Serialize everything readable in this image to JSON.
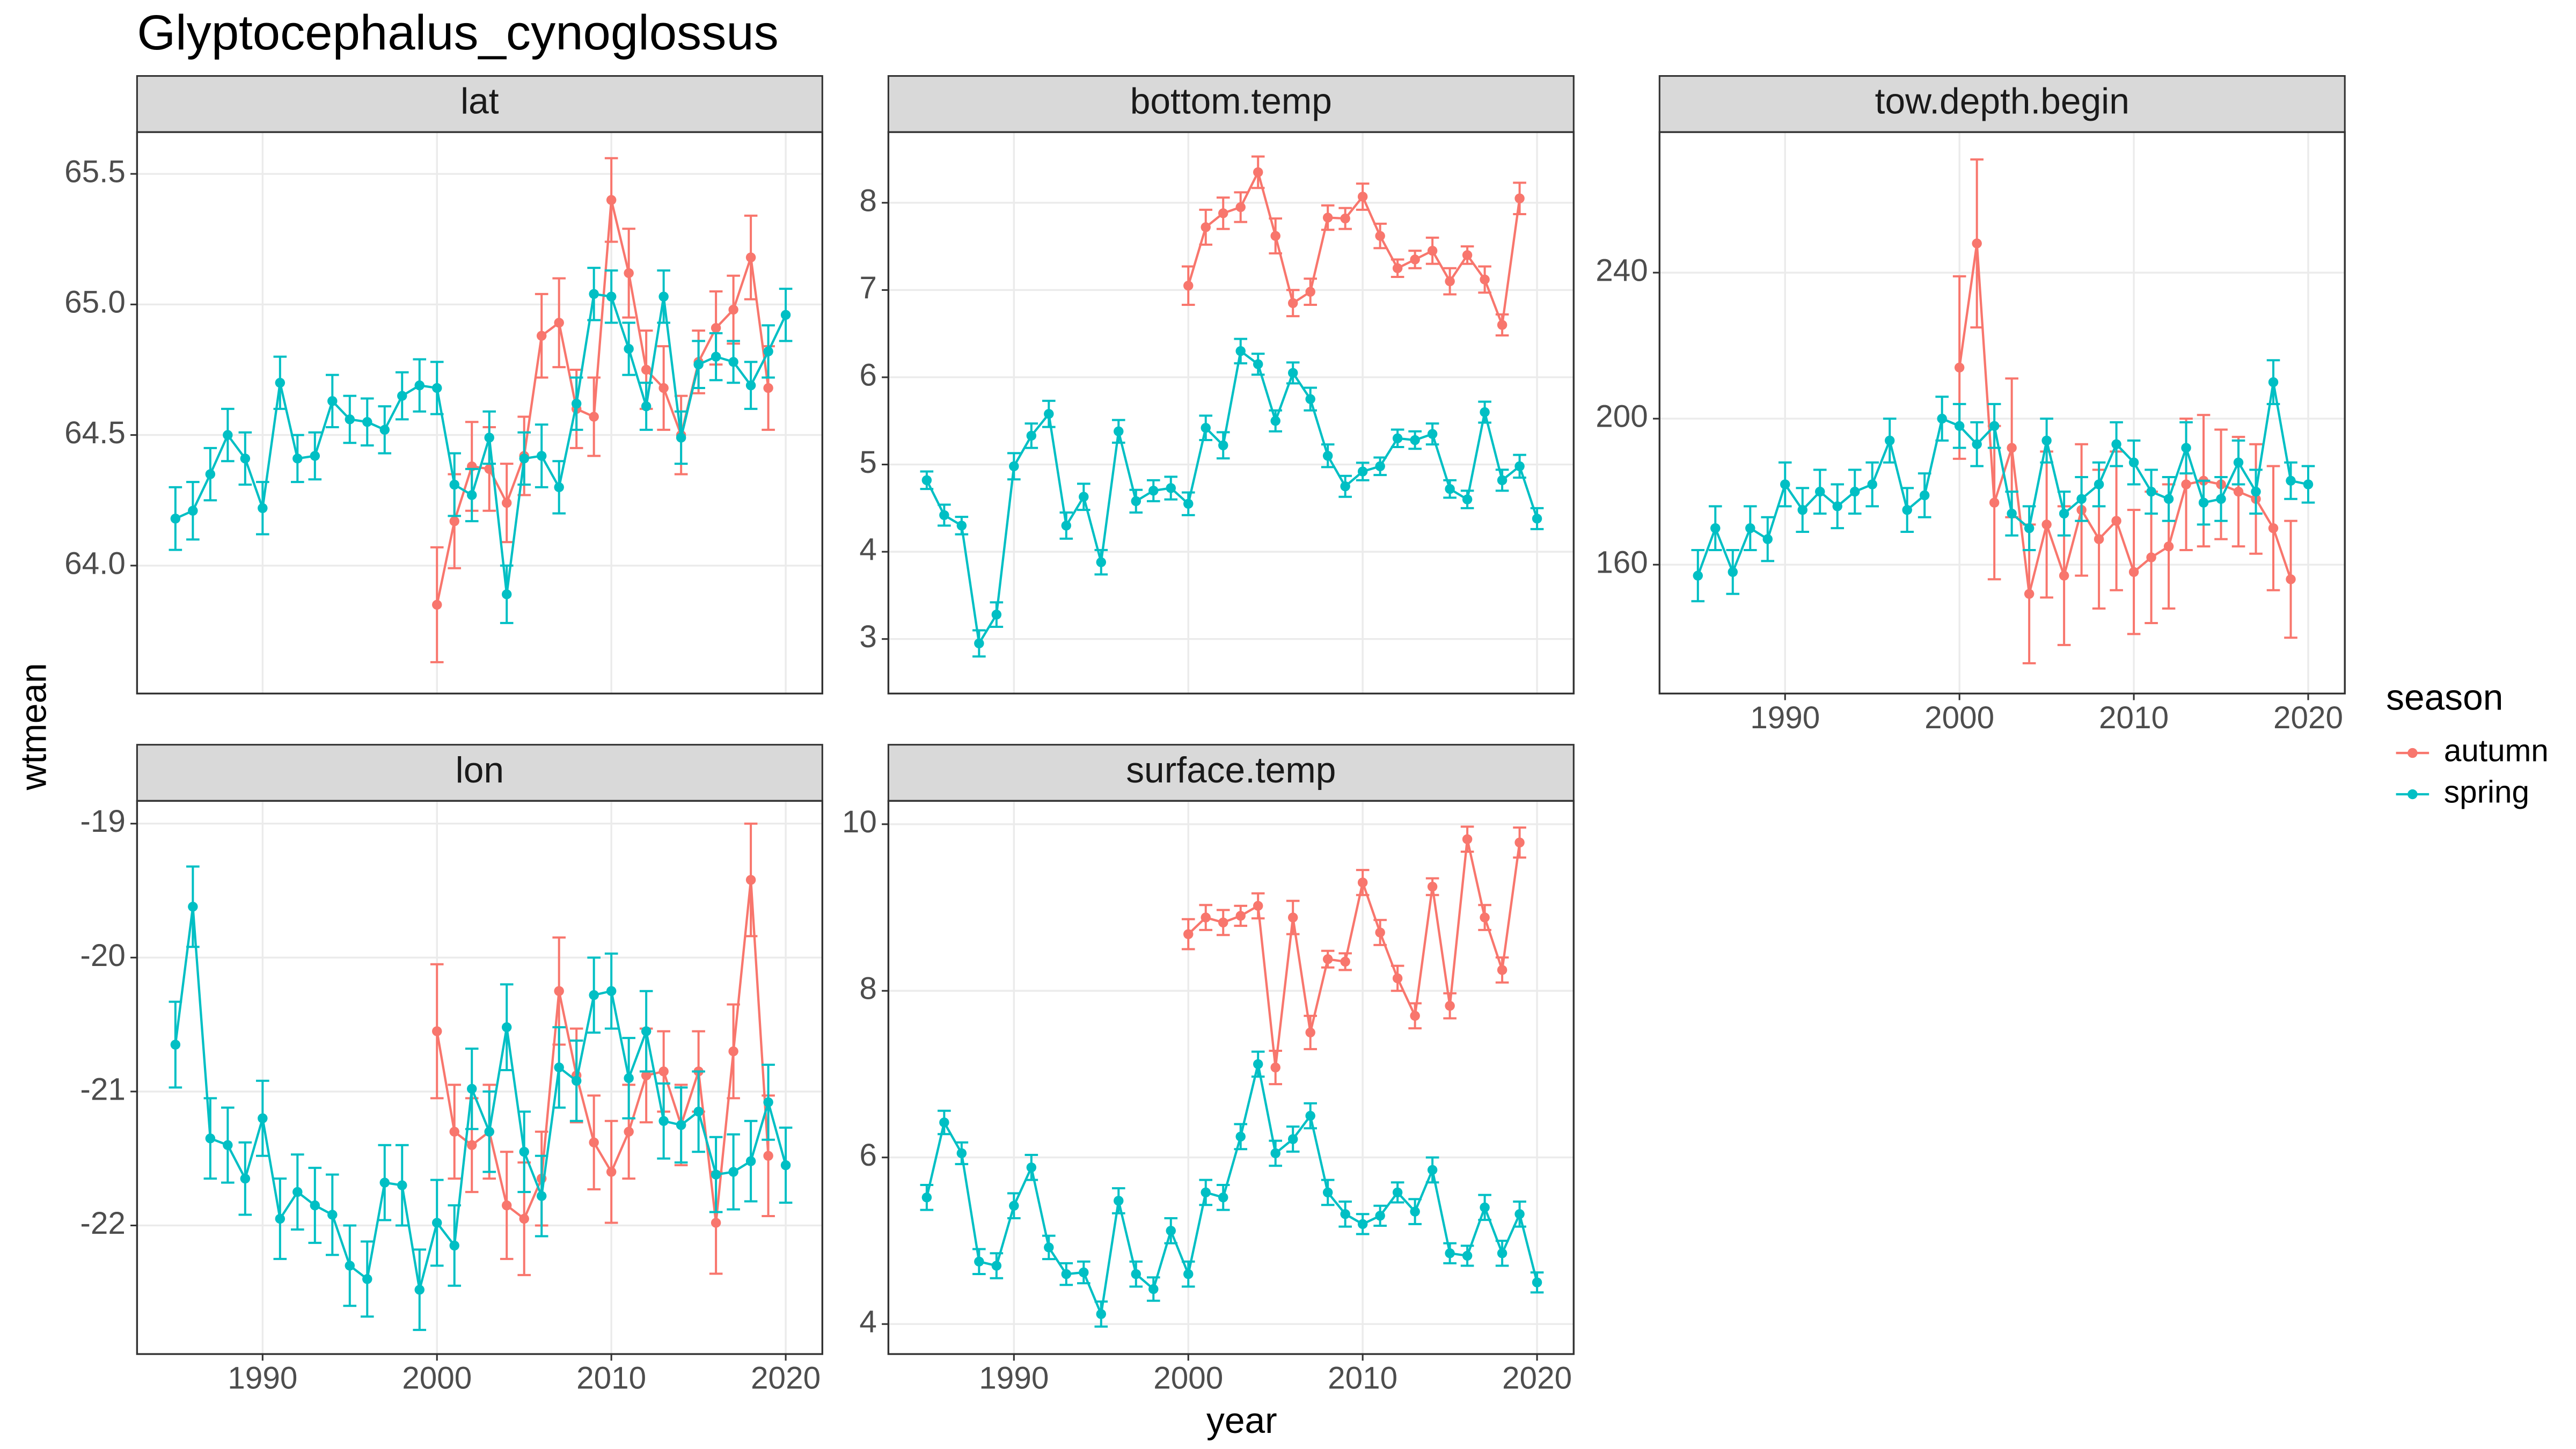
{
  "title": "Glyptocephalus_cynoglossus",
  "x_label": "year",
  "y_label": "wtmean",
  "legend": {
    "title": "season",
    "position": "right"
  },
  "chart_data": [
    {
      "type": "line",
      "title": "lat",
      "x": [
        1985,
        1986,
        1987,
        1988,
        1989,
        1990,
        1991,
        1992,
        1993,
        1994,
        1995,
        1996,
        1997,
        1998,
        1999,
        2000,
        2001,
        2002,
        2003,
        2004,
        2005,
        2006,
        2007,
        2008,
        2009,
        2010,
        2011,
        2012,
        2013,
        2014,
        2015,
        2016,
        2017,
        2018,
        2019,
        2020
      ],
      "xlim": [
        1982.8,
        2022.1
      ],
      "xticks": [
        1990,
        2000,
        2010,
        2020
      ],
      "ylim": [
        63.51,
        65.66
      ],
      "yticks": [
        {
          "value": 64.0,
          "label": "64.0"
        },
        64.5,
        {
          "value": 65.0,
          "label": "65.0"
        },
        65.5
      ],
      "grid": true,
      "series": [
        {
          "name": "autumn",
          "color": "#F8766D",
          "values": [
            null,
            null,
            null,
            null,
            null,
            null,
            null,
            null,
            null,
            null,
            null,
            null,
            null,
            null,
            null,
            63.85,
            64.17,
            64.38,
            64.37,
            64.24,
            64.42,
            64.88,
            64.93,
            64.6,
            64.57,
            65.4,
            65.12,
            64.75,
            64.68,
            64.5,
            64.78,
            64.91,
            64.98,
            65.18,
            64.68,
            null
          ],
          "errors": [
            null,
            null,
            null,
            null,
            null,
            null,
            null,
            null,
            null,
            null,
            null,
            null,
            null,
            null,
            null,
            0.22,
            0.18,
            0.17,
            0.16,
            0.15,
            0.15,
            0.16,
            0.17,
            0.15,
            0.15,
            0.16,
            0.17,
            0.15,
            0.16,
            0.15,
            0.12,
            0.14,
            0.13,
            0.16,
            0.16,
            null
          ]
        },
        {
          "name": "spring",
          "color": "#00BFC4",
          "values": [
            64.18,
            64.21,
            64.35,
            64.5,
            64.41,
            64.22,
            64.7,
            64.41,
            64.42,
            64.63,
            64.56,
            64.55,
            64.52,
            64.65,
            64.69,
            64.68,
            64.31,
            64.27,
            64.49,
            63.89,
            64.41,
            64.42,
            64.3,
            64.62,
            65.04,
            65.03,
            64.83,
            64.61,
            65.03,
            64.49,
            64.77,
            64.8,
            64.78,
            64.69,
            64.82,
            64.96
          ],
          "errors": [
            0.12,
            0.11,
            0.1,
            0.1,
            0.1,
            0.1,
            0.1,
            0.09,
            0.09,
            0.1,
            0.09,
            0.09,
            0.09,
            0.09,
            0.1,
            0.1,
            0.12,
            0.1,
            0.1,
            0.11,
            0.1,
            0.12,
            0.1,
            0.1,
            0.1,
            0.1,
            0.1,
            0.09,
            0.1,
            0.1,
            0.09,
            0.09,
            0.08,
            0.09,
            0.1,
            0.1
          ]
        }
      ]
    },
    {
      "type": "line",
      "title": "bottom.temp",
      "x": [
        1985,
        1986,
        1987,
        1988,
        1989,
        1990,
        1991,
        1992,
        1993,
        1994,
        1995,
        1996,
        1997,
        1998,
        1999,
        2000,
        2001,
        2002,
        2003,
        2004,
        2005,
        2006,
        2007,
        2008,
        2009,
        2010,
        2011,
        2012,
        2013,
        2014,
        2015,
        2016,
        2017,
        2018,
        2019,
        2020
      ],
      "xlim": [
        1982.8,
        2022.1
      ],
      "xticks": [
        1990,
        2000,
        2010,
        2020
      ],
      "ylim": [
        2.375,
        8.81
      ],
      "yticks": [
        3,
        4,
        5,
        6,
        7,
        8
      ],
      "grid": true,
      "series": [
        {
          "name": "autumn",
          "color": "#F8766D",
          "values": [
            null,
            null,
            null,
            null,
            null,
            null,
            null,
            null,
            null,
            null,
            null,
            null,
            null,
            null,
            null,
            7.05,
            7.72,
            7.88,
            7.95,
            8.35,
            7.62,
            6.85,
            6.98,
            7.83,
            7.82,
            8.07,
            7.62,
            7.25,
            7.35,
            7.45,
            7.1,
            7.4,
            7.12,
            6.6,
            8.05,
            null
          ],
          "errors": [
            null,
            null,
            null,
            null,
            null,
            null,
            null,
            null,
            null,
            null,
            null,
            null,
            null,
            null,
            null,
            0.22,
            0.2,
            0.18,
            0.17,
            0.18,
            0.2,
            0.15,
            0.15,
            0.14,
            0.12,
            0.15,
            0.14,
            0.1,
            0.1,
            0.15,
            0.15,
            0.1,
            0.15,
            0.12,
            0.18,
            null
          ]
        },
        {
          "name": "spring",
          "color": "#00BFC4",
          "values": [
            4.82,
            4.42,
            4.3,
            2.95,
            3.28,
            4.98,
            5.33,
            5.58,
            4.3,
            4.63,
            3.88,
            5.38,
            4.58,
            4.7,
            4.73,
            4.55,
            5.42,
            5.22,
            6.3,
            6.15,
            5.5,
            6.05,
            5.75,
            5.1,
            4.75,
            4.92,
            4.98,
            5.3,
            5.28,
            5.35,
            4.72,
            4.6,
            5.6,
            4.82,
            4.98,
            4.38
          ],
          "errors": [
            0.1,
            0.12,
            0.1,
            0.15,
            0.14,
            0.15,
            0.14,
            0.15,
            0.15,
            0.15,
            0.14,
            0.13,
            0.13,
            0.12,
            0.13,
            0.13,
            0.14,
            0.15,
            0.14,
            0.12,
            0.12,
            0.12,
            0.13,
            0.13,
            0.12,
            0.1,
            0.1,
            0.1,
            0.1,
            0.12,
            0.1,
            0.1,
            0.12,
            0.12,
            0.13,
            0.12
          ]
        }
      ]
    },
    {
      "type": "line",
      "title": "tow.depth.begin",
      "x": [
        1985,
        1986,
        1987,
        1988,
        1989,
        1990,
        1991,
        1992,
        1993,
        1994,
        1995,
        1996,
        1997,
        1998,
        1999,
        2000,
        2001,
        2002,
        2003,
        2004,
        2005,
        2006,
        2007,
        2008,
        2009,
        2010,
        2011,
        2012,
        2013,
        2014,
        2015,
        2016,
        2017,
        2018,
        2019,
        2020
      ],
      "xlim": [
        1982.8,
        2022.1
      ],
      "xticks": [
        1990,
        2000,
        2010,
        2020
      ],
      "ylim": [
        124.7,
        278.5
      ],
      "yticks": [
        160,
        200,
        240
      ],
      "grid": true,
      "series": [
        {
          "name": "autumn",
          "color": "#F8766D",
          "values": [
            null,
            null,
            null,
            null,
            null,
            null,
            null,
            null,
            null,
            null,
            null,
            null,
            null,
            null,
            null,
            214,
            248,
            177,
            192,
            152,
            171,
            157,
            175,
            167,
            172,
            158,
            162,
            165,
            182,
            183,
            182,
            180,
            178,
            170,
            156,
            null
          ],
          "errors": [
            null,
            null,
            null,
            null,
            null,
            null,
            null,
            null,
            null,
            null,
            null,
            null,
            null,
            null,
            null,
            25,
            23,
            21,
            19,
            19,
            20,
            19,
            18,
            19,
            19,
            17,
            18,
            17,
            18,
            18,
            15,
            15,
            15,
            17,
            16,
            null
          ]
        },
        {
          "name": "spring",
          "color": "#00BFC4",
          "values": [
            157,
            170,
            158,
            170,
            167,
            182,
            175,
            180,
            176,
            180,
            182,
            194,
            175,
            179,
            200,
            198,
            193,
            198,
            174,
            170,
            194,
            174,
            178,
            182,
            193,
            188,
            180,
            178,
            192,
            177,
            178,
            188,
            180,
            210,
            183,
            182
          ],
          "errors": [
            7,
            6,
            6,
            6,
            6,
            6,
            6,
            6,
            6,
            6,
            6,
            6,
            6,
            6,
            6,
            6,
            6,
            6,
            6,
            6,
            6,
            6,
            6,
            6,
            6,
            6,
            6,
            6,
            7,
            6,
            6,
            6,
            6,
            6,
            5,
            5
          ]
        }
      ]
    },
    {
      "type": "line",
      "title": "lon",
      "x": [
        1985,
        1986,
        1987,
        1988,
        1989,
        1990,
        1991,
        1992,
        1993,
        1994,
        1995,
        1996,
        1997,
        1998,
        1999,
        2000,
        2001,
        2002,
        2003,
        2004,
        2005,
        2006,
        2007,
        2008,
        2009,
        2010,
        2011,
        2012,
        2013,
        2014,
        2015,
        2016,
        2017,
        2018,
        2019,
        2020
      ],
      "xlim": [
        1982.8,
        2022.1
      ],
      "xticks": [
        1990,
        2000,
        2010,
        2020
      ],
      "ylim": [
        -22.96,
        -18.83
      ],
      "yticks": [
        -22,
        -21,
        -20,
        -19
      ],
      "grid": true,
      "series": [
        {
          "name": "autumn",
          "color": "#F8766D",
          "values": [
            null,
            null,
            null,
            null,
            null,
            null,
            null,
            null,
            null,
            null,
            null,
            null,
            null,
            null,
            null,
            -20.55,
            -21.3,
            -21.4,
            -21.3,
            -21.85,
            -21.95,
            -21.65,
            -20.25,
            -20.88,
            -21.38,
            -21.6,
            -21.3,
            -20.88,
            -20.85,
            -21.25,
            -20.85,
            -21.98,
            -20.7,
            -19.42,
            -21.48,
            null
          ],
          "errors": [
            null,
            null,
            null,
            null,
            null,
            null,
            null,
            null,
            null,
            null,
            null,
            null,
            null,
            null,
            null,
            0.5,
            0.35,
            0.35,
            0.35,
            0.4,
            0.42,
            0.35,
            0.4,
            0.35,
            0.35,
            0.38,
            0.35,
            0.35,
            0.3,
            0.3,
            0.3,
            0.38,
            0.35,
            0.42,
            0.45,
            null
          ]
        },
        {
          "name": "spring",
          "color": "#00BFC4",
          "values": [
            -20.65,
            -19.62,
            -21.35,
            -21.4,
            -21.65,
            -21.2,
            -21.95,
            -21.75,
            -21.85,
            -21.92,
            -22.3,
            -22.4,
            -21.68,
            -21.7,
            -22.48,
            -21.98,
            -22.15,
            -20.98,
            -21.3,
            -20.52,
            -21.45,
            -21.78,
            -20.82,
            -20.92,
            -20.28,
            -20.25,
            -20.9,
            -20.55,
            -21.22,
            -21.25,
            -21.15,
            -21.62,
            -21.6,
            -21.52,
            -21.08,
            -21.55
          ],
          "errors": [
            0.32,
            0.3,
            0.3,
            0.28,
            0.27,
            0.28,
            0.3,
            0.28,
            0.28,
            0.3,
            0.3,
            0.28,
            0.28,
            0.3,
            0.3,
            0.32,
            0.3,
            0.3,
            0.3,
            0.32,
            0.3,
            0.3,
            0.3,
            0.3,
            0.28,
            0.28,
            0.3,
            0.3,
            0.28,
            0.28,
            0.3,
            0.28,
            0.28,
            0.3,
            0.28,
            0.28
          ]
        }
      ]
    },
    {
      "type": "line",
      "title": "surface.temp",
      "x": [
        1985,
        1986,
        1987,
        1988,
        1989,
        1990,
        1991,
        1992,
        1993,
        1994,
        1995,
        1996,
        1997,
        1998,
        1999,
        2000,
        2001,
        2002,
        2003,
        2004,
        2005,
        2006,
        2007,
        2008,
        2009,
        2010,
        2011,
        2012,
        2013,
        2014,
        2015,
        2016,
        2017,
        2018,
        2019,
        2020
      ],
      "xlim": [
        1982.8,
        2022.1
      ],
      "xticks": [
        1990,
        2000,
        2010,
        2020
      ],
      "ylim": [
        3.64,
        10.28
      ],
      "yticks": [
        4,
        6,
        8,
        10
      ],
      "grid": true,
      "series": [
        {
          "name": "autumn",
          "color": "#F8766D",
          "values": [
            null,
            null,
            null,
            null,
            null,
            null,
            null,
            null,
            null,
            null,
            null,
            null,
            null,
            null,
            null,
            8.68,
            8.88,
            8.82,
            8.9,
            9.02,
            7.08,
            8.88,
            7.5,
            8.38,
            8.35,
            9.3,
            8.7,
            8.15,
            7.7,
            9.25,
            7.82,
            9.82,
            8.88,
            8.25,
            9.78,
            null
          ],
          "errors": [
            null,
            null,
            null,
            null,
            null,
            null,
            null,
            null,
            null,
            null,
            null,
            null,
            null,
            null,
            null,
            0.18,
            0.15,
            0.15,
            0.12,
            0.15,
            0.2,
            0.2,
            0.2,
            0.1,
            0.1,
            0.15,
            0.15,
            0.15,
            0.15,
            0.1,
            0.15,
            0.15,
            0.15,
            0.15,
            0.18,
            null
          ]
        },
        {
          "name": "spring",
          "color": "#00BFC4",
          "values": [
            5.52,
            6.42,
            6.05,
            4.75,
            4.7,
            5.42,
            5.88,
            4.92,
            4.6,
            4.62,
            4.12,
            5.48,
            4.6,
            4.42,
            5.12,
            4.6,
            5.58,
            5.52,
            6.25,
            7.12,
            6.05,
            6.22,
            6.5,
            5.58,
            5.32,
            5.2,
            5.3,
            5.58,
            5.35,
            5.85,
            4.85,
            4.82,
            5.4,
            4.85,
            5.32,
            4.5
          ],
          "errors": [
            0.15,
            0.14,
            0.13,
            0.15,
            0.15,
            0.15,
            0.15,
            0.14,
            0.13,
            0.13,
            0.15,
            0.15,
            0.15,
            0.14,
            0.15,
            0.15,
            0.15,
            0.15,
            0.15,
            0.15,
            0.15,
            0.15,
            0.15,
            0.15,
            0.15,
            0.12,
            0.12,
            0.12,
            0.15,
            0.15,
            0.12,
            0.12,
            0.15,
            0.15,
            0.15,
            0.12
          ]
        }
      ]
    }
  ]
}
